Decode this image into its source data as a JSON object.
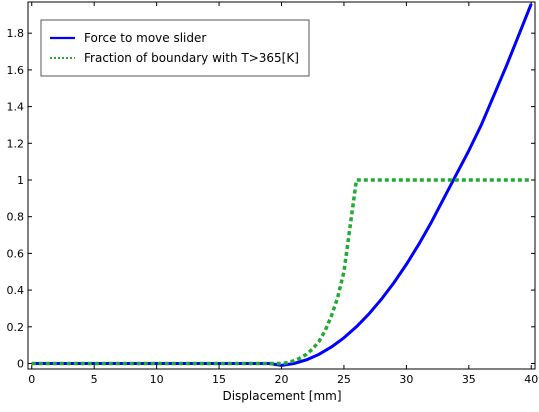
{
  "chart_data": {
    "type": "line",
    "xlabel": "Displacement [mm]",
    "ylabel": "",
    "xlim": [
      -0.3,
      40.3
    ],
    "ylim": [
      -0.03,
      1.97
    ],
    "x_ticks": [
      0,
      5,
      10,
      15,
      20,
      25,
      30,
      35,
      40
    ],
    "x_tick_labels": [
      "0",
      "5",
      "10",
      "15",
      "20",
      "25",
      "30",
      "35",
      "40"
    ],
    "y_ticks": [
      0,
      0.2,
      0.4,
      0.6,
      0.8,
      1,
      1.2,
      1.4,
      1.6,
      1.8
    ],
    "y_tick_labels": [
      "0",
      "0.2",
      "0.4",
      "0.6",
      "0.8",
      "1",
      "1.2",
      "1.4",
      "1.6",
      "1.8"
    ],
    "grid": false,
    "legend_position": "top-left",
    "series": [
      {
        "name": "Force to move slider",
        "style": "solid",
        "color": "#0000ff",
        "x": [
          0,
          5,
          10,
          15,
          18,
          19,
          20,
          21,
          22,
          23,
          24,
          25,
          26,
          27,
          28,
          29,
          30,
          31,
          32,
          33,
          34,
          35,
          36,
          37,
          38,
          39,
          40
        ],
        "y": [
          0,
          0,
          0,
          0,
          0,
          0,
          -0.01,
          0.0,
          0.02,
          0.05,
          0.09,
          0.14,
          0.2,
          0.27,
          0.35,
          0.44,
          0.54,
          0.65,
          0.77,
          0.9,
          1.03,
          1.16,
          1.3,
          1.46,
          1.62,
          1.79,
          1.96
        ]
      },
      {
        "name": "Fraction of boundary with T>365[K]",
        "style": "dotted",
        "color": "#22aa33",
        "x": [
          0,
          5,
          10,
          15,
          19,
          20,
          20.5,
          21,
          21.5,
          22,
          22.5,
          23,
          23.5,
          24,
          24.5,
          25,
          25.5,
          26,
          27,
          30,
          35,
          40
        ],
        "y": [
          0,
          0,
          0,
          0,
          0,
          0,
          0.005,
          0.015,
          0.03,
          0.05,
          0.08,
          0.12,
          0.18,
          0.26,
          0.36,
          0.5,
          0.75,
          1.0,
          1.0,
          1.0,
          1.0,
          1.0
        ]
      }
    ]
  }
}
